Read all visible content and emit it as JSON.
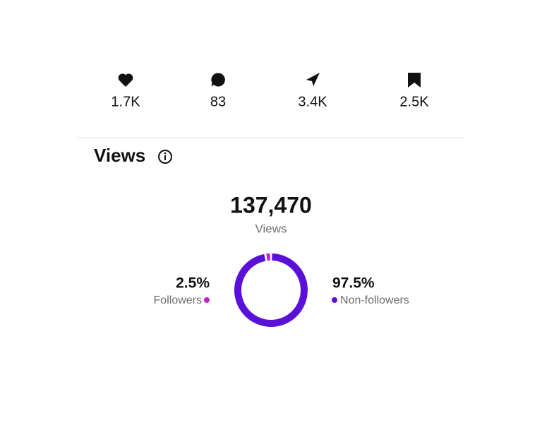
{
  "stats": [
    {
      "label": "1.7K"
    },
    {
      "label": "83"
    },
    {
      "label": "3.4K"
    },
    {
      "label": "2.5K"
    }
  ],
  "views": {
    "title": "Views",
    "total": "137,470",
    "total_caption": "Views"
  },
  "chart_data": {
    "type": "pie",
    "donut": true,
    "categories": [
      "Followers",
      "Non-followers"
    ],
    "values": [
      2.5,
      97.5
    ],
    "value_labels": [
      "2.5%",
      "97.5%"
    ],
    "colors": [
      "#c41fc8",
      "#5a10d8"
    ]
  }
}
